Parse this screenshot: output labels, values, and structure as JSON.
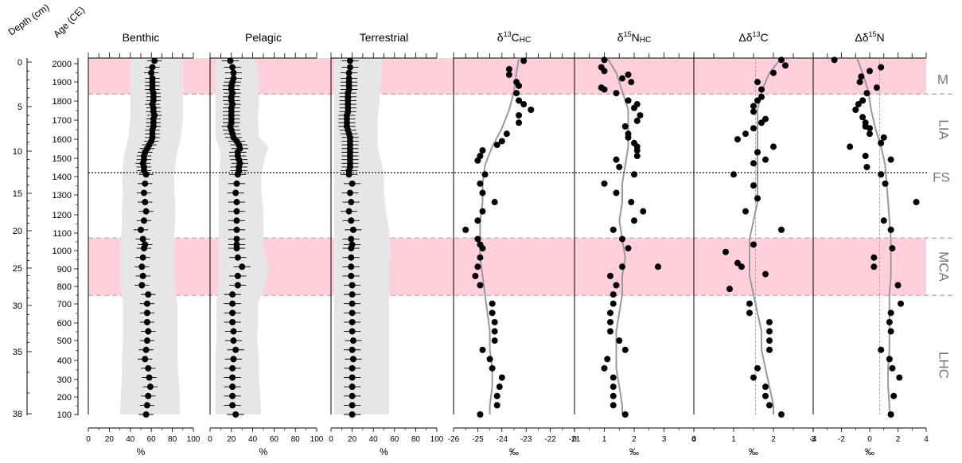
{
  "axis_titles": {
    "depth": "Depth (cm)",
    "age": "Age (CE)"
  },
  "depth_ticks": [
    "0",
    "5",
    "10",
    "15",
    "20",
    "25",
    "30",
    "35",
    "38"
  ],
  "age_ticks": [
    "2000",
    "1900",
    "1800",
    "1700",
    "1600",
    "1500",
    "1400",
    "1300",
    "1200",
    "1100",
    "1000",
    "900",
    "800",
    "700",
    "600",
    "500",
    "400",
    "300",
    "200",
    "100"
  ],
  "zones": [
    {
      "label": "M",
      "from_age": 2030,
      "to_age": 1835,
      "color": "#ffd0dc"
    },
    {
      "label": "LIA",
      "from_age": 1835,
      "to_age": 1410,
      "color": ""
    },
    {
      "label": "FS",
      "at_age": 1410
    },
    {
      "label": "MCA",
      "from_age": 1055,
      "to_age": 745,
      "color": "#ffd0dc"
    },
    {
      "label": "LHC",
      "from_age": 745,
      "to_age": 100,
      "color": ""
    }
  ],
  "colors": {
    "highlight": "#ffd0dc",
    "band": "#e6e6e6",
    "points": "#000000",
    "trend": "#999999",
    "dashed": "#bbbbbb"
  },
  "chart_data": [
    {
      "type": "scatter",
      "title": "Benthic",
      "xlabel": "%",
      "xlim": [
        0,
        100
      ],
      "x_ticks": [
        "0",
        "20",
        "40",
        "60",
        "80",
        "100"
      ],
      "ages": [
        2015,
        1980,
        1950,
        1920,
        1900,
        1880,
        1860,
        1840,
        1820,
        1800,
        1780,
        1760,
        1740,
        1720,
        1700,
        1680,
        1660,
        1640,
        1620,
        1600,
        1580,
        1560,
        1540,
        1520,
        1500,
        1480,
        1460,
        1440,
        1420,
        1400,
        1350,
        1300,
        1250,
        1200,
        1150,
        1100,
        1050,
        1020,
        1000,
        950,
        900,
        850,
        800,
        750,
        700,
        650,
        600,
        550,
        500,
        450,
        400,
        350,
        300,
        250,
        200,
        150,
        100
      ],
      "values": [
        63,
        61,
        60,
        61,
        61,
        61,
        61,
        62,
        62,
        62,
        61,
        62,
        62,
        63,
        62,
        62,
        62,
        61,
        61,
        61,
        60,
        58,
        56,
        54,
        53,
        53,
        52,
        53,
        53,
        55,
        54,
        53,
        54,
        55,
        53,
        50,
        52,
        54,
        53,
        52,
        51,
        52,
        51,
        57,
        56,
        56,
        56,
        57,
        56,
        55,
        54,
        57,
        58,
        59,
        57,
        56,
        55
      ],
      "errors": [
        7
      ],
      "band_ages": [
        2030,
        1950,
        1850,
        1800,
        1700,
        1600,
        1550,
        1500,
        1400,
        1300,
        1200,
        1100,
        1000,
        900,
        800,
        700,
        600,
        500,
        400,
        300,
        200,
        100
      ],
      "band_lower": [
        40,
        40,
        40,
        40,
        40,
        38,
        36,
        34,
        32,
        33,
        32,
        32,
        30,
        30,
        30,
        33,
        33,
        33,
        32,
        32,
        31,
        30
      ],
      "band_upper": [
        90,
        90,
        90,
        90,
        90,
        88,
        86,
        84,
        82,
        82,
        83,
        82,
        82,
        82,
        82,
        85,
        85,
        85,
        85,
        86,
        87,
        87
      ]
    },
    {
      "type": "scatter",
      "title": "Pelagic",
      "xlabel": "%",
      "xlim": [
        0,
        100
      ],
      "x_ticks": [
        "0",
        "20",
        "40",
        "60",
        "80",
        "100"
      ],
      "ages": [
        2015,
        1980,
        1950,
        1920,
        1900,
        1880,
        1860,
        1840,
        1820,
        1800,
        1780,
        1760,
        1740,
        1720,
        1700,
        1680,
        1660,
        1640,
        1620,
        1600,
        1580,
        1560,
        1540,
        1520,
        1500,
        1480,
        1460,
        1440,
        1420,
        1400,
        1350,
        1300,
        1250,
        1200,
        1150,
        1100,
        1050,
        1020,
        1000,
        950,
        900,
        850,
        800,
        750,
        700,
        650,
        600,
        550,
        500,
        450,
        400,
        350,
        300,
        250,
        200,
        150,
        100
      ],
      "values": [
        19,
        21,
        22,
        22,
        21,
        20,
        20,
        21,
        20,
        20,
        21,
        20,
        20,
        20,
        20,
        20,
        19,
        20,
        21,
        22,
        25,
        27,
        28,
        26,
        26,
        27,
        28,
        27,
        27,
        26,
        25,
        24,
        25,
        25,
        25,
        25,
        25,
        25,
        25,
        26,
        30,
        26,
        26,
        21,
        21,
        21,
        21,
        22,
        22,
        24,
        22,
        21,
        21,
        21,
        21,
        21,
        24
      ],
      "errors": [
        8
      ],
      "band_ages": [
        2030,
        1950,
        1850,
        1800,
        1700,
        1600,
        1550,
        1500,
        1400,
        1300,
        1200,
        1100,
        1000,
        900,
        800,
        700,
        600,
        500,
        400,
        300,
        200,
        100
      ],
      "band_lower": [
        5,
        5,
        5,
        5,
        5,
        5,
        8,
        10,
        8,
        8,
        8,
        8,
        8,
        8,
        8,
        6,
        6,
        6,
        5,
        5,
        5,
        5
      ],
      "band_upper": [
        42,
        45,
        45,
        46,
        45,
        46,
        55,
        52,
        48,
        48,
        50,
        50,
        50,
        55,
        52,
        45,
        45,
        44,
        46,
        46,
        47,
        48
      ]
    },
    {
      "type": "scatter",
      "title": "Terrestrial",
      "xlabel": "%",
      "xlim": [
        0,
        100
      ],
      "x_ticks": [
        "0",
        "20",
        "40",
        "60",
        "80",
        "100"
      ],
      "ages": [
        2015,
        1980,
        1950,
        1920,
        1900,
        1880,
        1860,
        1840,
        1820,
        1800,
        1780,
        1760,
        1740,
        1720,
        1700,
        1680,
        1660,
        1640,
        1620,
        1600,
        1580,
        1560,
        1540,
        1520,
        1500,
        1480,
        1460,
        1440,
        1420,
        1400,
        1350,
        1300,
        1250,
        1200,
        1150,
        1100,
        1050,
        1020,
        1000,
        950,
        900,
        850,
        800,
        750,
        700,
        650,
        600,
        550,
        500,
        450,
        400,
        350,
        300,
        250,
        200,
        150,
        100
      ],
      "values": [
        18,
        18,
        17,
        17,
        17,
        17,
        17,
        16,
        16,
        16,
        16,
        16,
        16,
        15,
        15,
        15,
        15,
        16,
        17,
        18,
        18,
        18,
        18,
        18,
        18,
        18,
        18,
        18,
        17,
        17,
        20,
        18,
        19,
        17,
        19,
        21,
        19,
        20,
        19,
        19,
        19,
        19,
        20,
        20,
        20,
        20,
        20,
        20,
        21,
        20,
        21,
        20,
        20,
        20,
        20,
        20,
        20
      ],
      "errors": [
        8
      ],
      "band_ages": [
        2030,
        1950,
        1850,
        1800,
        1700,
        1600,
        1550,
        1500,
        1400,
        1300,
        1200,
        1100,
        1000,
        900,
        800,
        700,
        600,
        500,
        400,
        300,
        200,
        100
      ],
      "band_lower": [
        3,
        3,
        3,
        3,
        3,
        3,
        3,
        3,
        3,
        3,
        3,
        3,
        3,
        3,
        3,
        3,
        3,
        3,
        3,
        3,
        3,
        3
      ],
      "band_upper": [
        48,
        48,
        46,
        46,
        44,
        44,
        44,
        46,
        50,
        50,
        52,
        55,
        56,
        55,
        55,
        55,
        55,
        55,
        55,
        55,
        55,
        55
      ]
    },
    {
      "type": "scatter",
      "title": "δ13CHC",
      "xlabel": "‰",
      "xlim": [
        -26,
        -21
      ],
      "x_ticks": [
        "-26",
        "-25",
        "-24",
        "-23",
        "-22",
        "-21"
      ],
      "ages": [
        2015,
        1970,
        1940,
        1900,
        1880,
        1840,
        1800,
        1780,
        1750,
        1720,
        1680,
        1620,
        1580,
        1560,
        1530,
        1500,
        1475,
        1400,
        1350,
        1300,
        1250,
        1200,
        1150,
        1100,
        1050,
        1020,
        1000,
        950,
        900,
        850,
        800,
        700,
        650,
        600,
        550,
        500,
        450,
        400,
        350,
        300,
        250,
        200,
        150,
        100
      ],
      "values": [
        -23.1,
        -23.7,
        -23.7,
        -23.4,
        -23.3,
        -23.4,
        -23.3,
        -23.1,
        -22.8,
        -23.3,
        -23.3,
        -23.8,
        -24.0,
        -24.2,
        -24.8,
        -24.9,
        -25.0,
        -24.7,
        -24.9,
        -24.8,
        -24.3,
        -24.8,
        -25.0,
        -25.5,
        -25.0,
        -24.9,
        -24.8,
        -24.9,
        -25.0,
        -25.1,
        -24.9,
        -24.4,
        -24.4,
        -24.3,
        -24.3,
        -24.3,
        -24.8,
        -24.5,
        -24.4,
        -24.0,
        -24.1,
        -24.2,
        -24.2,
        -24.9
      ],
      "trend_ages": [
        2030,
        1950,
        1850,
        1750,
        1650,
        1550,
        1450,
        1350,
        1250,
        1150,
        1050,
        950,
        850,
        750,
        650,
        550,
        450,
        350,
        250,
        150,
        100
      ],
      "trend_values": [
        -23.3,
        -23.4,
        -23.5,
        -23.7,
        -24.0,
        -24.4,
        -24.7,
        -24.8,
        -24.8,
        -24.9,
        -24.9,
        -24.9,
        -24.8,
        -24.7,
        -24.6,
        -24.5,
        -24.5,
        -24.4,
        -24.4,
        -24.5,
        -24.5
      ]
    },
    {
      "type": "scatter",
      "title": "δ15NHC",
      "xlabel": "‰",
      "xlim": [
        0,
        4
      ],
      "x_ticks": [
        "0",
        "1",
        "2",
        "3",
        "4"
      ],
      "ages": [
        2020,
        1980,
        1960,
        1940,
        1920,
        1900,
        1870,
        1860,
        1840,
        1800,
        1780,
        1760,
        1720,
        1690,
        1660,
        1620,
        1600,
        1570,
        1550,
        1530,
        1500,
        1480,
        1440,
        1400,
        1350,
        1300,
        1250,
        1200,
        1150,
        1100,
        1050,
        1000,
        900,
        900,
        850,
        800,
        750,
        700,
        650,
        600,
        550,
        500,
        450,
        400,
        350,
        300,
        250,
        200,
        150,
        100
      ],
      "values": [
        1.0,
        0.9,
        1.0,
        1.8,
        1.6,
        1.9,
        0.9,
        1.0,
        1.4,
        1.8,
        2.1,
        2.0,
        2.2,
        2.1,
        1.7,
        1.8,
        1.8,
        2.0,
        2.1,
        2.1,
        2.1,
        1.4,
        1.5,
        2.0,
        1.0,
        1.4,
        1.9,
        2.3,
        2.0,
        1.3,
        1.6,
        1.8,
        1.6,
        2.8,
        1.2,
        1.4,
        1.3,
        1.3,
        1.2,
        1.2,
        1.2,
        1.5,
        1.7,
        1.1,
        1.0,
        1.3,
        1.3,
        1.3,
        1.3,
        1.7
      ],
      "trend_ages": [
        2030,
        1950,
        1850,
        1750,
        1650,
        1550,
        1450,
        1350,
        1250,
        1150,
        1050,
        950,
        850,
        750,
        650,
        550,
        450,
        350,
        250,
        150,
        100
      ],
      "trend_values": [
        1.1,
        1.4,
        1.6,
        1.8,
        1.8,
        1.8,
        1.7,
        1.6,
        1.6,
        1.5,
        1.6,
        1.7,
        1.6,
        1.6,
        1.5,
        1.4,
        1.4,
        1.4,
        1.5,
        1.6,
        1.6
      ]
    },
    {
      "type": "scatter",
      "title": "Δδ13C",
      "xlabel": "‰",
      "xlim": [
        0,
        3
      ],
      "x_ticks": [
        "0",
        "1",
        "2",
        "3"
      ],
      "ages": [
        2020,
        1990,
        1950,
        1900,
        1860,
        1820,
        1800,
        1770,
        1740,
        1700,
        1680,
        1650,
        1620,
        1590,
        1550,
        1520,
        1480,
        1460,
        1400,
        1340,
        1270,
        1200,
        1100,
        1020,
        980,
        920,
        900,
        860,
        780,
        700,
        650,
        600,
        550,
        500,
        450,
        350,
        300,
        250,
        200,
        150,
        100
      ],
      "values": [
        2.2,
        2.3,
        2.0,
        1.6,
        1.7,
        1.7,
        1.6,
        1.5,
        1.5,
        1.8,
        1.7,
        1.5,
        1.3,
        1.1,
        2.0,
        1.6,
        1.8,
        1.5,
        1.0,
        1.5,
        1.6,
        1.3,
        2.2,
        1.5,
        0.8,
        1.1,
        1.2,
        1.8,
        0.9,
        1.4,
        1.4,
        1.9,
        1.9,
        1.9,
        1.9,
        1.6,
        1.5,
        1.8,
        1.8,
        1.9,
        2.2
      ],
      "trend_ages": [
        2030,
        1950,
        1850,
        1750,
        1650,
        1550,
        1450,
        1350,
        1250,
        1150,
        1050,
        950,
        850,
        750,
        650,
        550,
        450,
        350,
        250,
        150,
        100
      ],
      "trend_values": [
        2.2,
        1.9,
        1.7,
        1.6,
        1.6,
        1.6,
        1.6,
        1.6,
        1.6,
        1.5,
        1.4,
        1.4,
        1.4,
        1.5,
        1.6,
        1.7,
        1.7,
        1.8,
        1.9,
        2.0,
        2.0
      ],
      "reference_value": 1.55
    },
    {
      "type": "scatter",
      "title": "Δδ15N",
      "xlabel": "‰",
      "xlim": [
        -4,
        4
      ],
      "x_ticks": [
        "-4",
        "-2",
        "0",
        "2",
        "4"
      ],
      "ages": [
        2020,
        1980,
        1960,
        1930,
        1900,
        1870,
        1840,
        1800,
        1780,
        1750,
        1710,
        1680,
        1660,
        1650,
        1620,
        1600,
        1570,
        1550,
        1500,
        1480,
        1440,
        1400,
        1350,
        1250,
        1150,
        1100,
        1000,
        950,
        900,
        800,
        700,
        650,
        600,
        550,
        450,
        400,
        350,
        300,
        200,
        100
      ],
      "values": [
        -2.5,
        0.8,
        0.0,
        -0.6,
        -0.7,
        0.5,
        -0.2,
        -0.5,
        -0.8,
        -1.0,
        -0.5,
        -0.3,
        -0.3,
        0.0,
        0.0,
        1.0,
        0.8,
        -1.4,
        -0.3,
        1.5,
        -0.2,
        0.8,
        1.1,
        3.3,
        1.0,
        1.5,
        1.6,
        0.3,
        0.3,
        2.0,
        2.2,
        1.5,
        1.4,
        1.5,
        0.8,
        1.4,
        1.6,
        2.1,
        1.7,
        1.5
      ],
      "trend_ages": [
        2030,
        1950,
        1850,
        1750,
        1650,
        1550,
        1450,
        1350,
        1250,
        1150,
        1050,
        950,
        850,
        750,
        650,
        550,
        450,
        350,
        250,
        150,
        100
      ],
      "trend_values": [
        -0.9,
        -0.5,
        -0.1,
        0.1,
        0.4,
        0.8,
        1.1,
        1.2,
        1.3,
        1.4,
        1.5,
        1.5,
        1.5,
        1.4,
        1.4,
        1.4,
        1.4,
        1.3,
        1.3,
        1.4,
        1.4
      ],
      "reference_value": 0.7
    }
  ]
}
